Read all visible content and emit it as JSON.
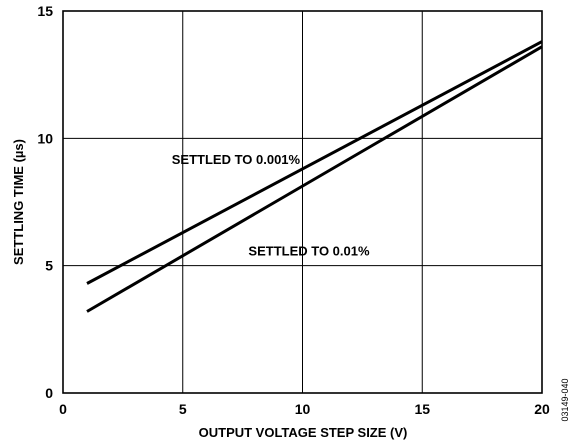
{
  "chart_data": {
    "type": "line",
    "title": "",
    "xlabel": "OUTPUT VOLTAGE STEP SIZE (V)",
    "ylabel": "SETTLING TIME (µs)",
    "xlim": [
      0,
      20
    ],
    "ylim": [
      0,
      15
    ],
    "x_ticks": [
      "0",
      "5",
      "10",
      "15",
      "20"
    ],
    "y_ticks": [
      "0",
      "5",
      "10",
      "15"
    ],
    "grid": true,
    "series": [
      {
        "name": "SETTLED TO 0.001%",
        "x": [
          1,
          20
        ],
        "y": [
          4.3,
          13.8
        ]
      },
      {
        "name": "SETTLED TO 0.01%",
        "x": [
          1,
          20
        ],
        "y": [
          3.2,
          13.6
        ]
      }
    ],
    "annotations": [
      {
        "text": "SETTLED TO 0.001%",
        "x": 9.9,
        "y": 9.0
      },
      {
        "text": "SETTLED TO 0.01%",
        "x": 12.8,
        "y": 5.4
      }
    ],
    "figure_id": "03149-040"
  }
}
